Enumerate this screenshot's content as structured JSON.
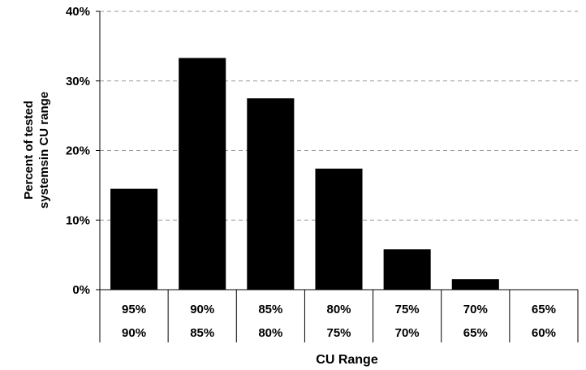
{
  "chart_data": {
    "type": "bar",
    "categories": [
      {
        "upper": "95%",
        "lower": "90%"
      },
      {
        "upper": "90%",
        "lower": "85%"
      },
      {
        "upper": "85%",
        "lower": "80%"
      },
      {
        "upper": "80%",
        "lower": "75%"
      },
      {
        "upper": "75%",
        "lower": "70%"
      },
      {
        "upper": "70%",
        "lower": "65%"
      },
      {
        "upper": "65%",
        "lower": "60%"
      }
    ],
    "values": [
      14.5,
      33.3,
      27.5,
      17.4,
      5.8,
      1.5,
      0
    ],
    "xlabel": "CU Range",
    "ylabel_lines": [
      "Percent of tested",
      "systemsin CU range"
    ],
    "ylim": [
      0,
      40
    ],
    "yticks": [
      0,
      10,
      20,
      30,
      40
    ],
    "ytick_labels": [
      "0%",
      "10%",
      "20%",
      "30%",
      "40%"
    ],
    "grid": "horizontal dashed",
    "legend": "none",
    "bar_color": "#000000"
  }
}
